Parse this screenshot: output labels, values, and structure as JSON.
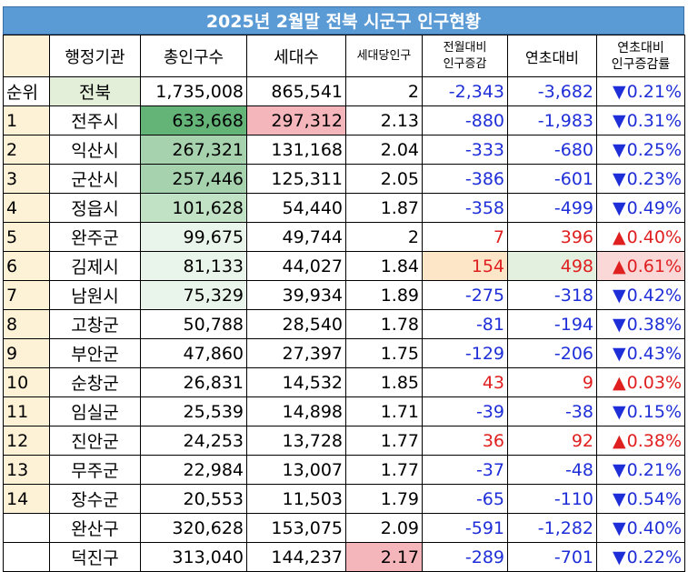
{
  "title": "2025년 2월말 전북 시군구 인구현황",
  "headers": {
    "rank": "",
    "agency": "행정기관",
    "population": "총인구수",
    "households": "세대수",
    "per_household": "세대당인구",
    "mom_change": "전월대비\n인구증감",
    "ytd_change": "연초대비",
    "ytd_rate": "연초대비\n인구증감률"
  },
  "rows": [
    {
      "rank": "순위",
      "name": "전북",
      "population": "1,735,008",
      "households": "865,541",
      "per_household": "2",
      "mom": "-2,343",
      "ytd": "-3,682",
      "dir": "▼",
      "rate": "0.21%"
    },
    {
      "rank": "1",
      "name": "전주시",
      "population": "633,668",
      "households": "297,312",
      "per_household": "2.13",
      "mom": "-880",
      "ytd": "-1,983",
      "dir": "▼",
      "rate": "0.31%"
    },
    {
      "rank": "2",
      "name": "익산시",
      "population": "267,321",
      "households": "131,168",
      "per_household": "2.04",
      "mom": "-333",
      "ytd": "-680",
      "dir": "▼",
      "rate": "0.25%"
    },
    {
      "rank": "3",
      "name": "군산시",
      "population": "257,446",
      "households": "125,311",
      "per_household": "2.05",
      "mom": "-386",
      "ytd": "-601",
      "dir": "▼",
      "rate": "0.23%"
    },
    {
      "rank": "4",
      "name": "정읍시",
      "population": "101,628",
      "households": "54,440",
      "per_household": "1.87",
      "mom": "-358",
      "ytd": "-499",
      "dir": "▼",
      "rate": "0.49%"
    },
    {
      "rank": "5",
      "name": "완주군",
      "population": "99,675",
      "households": "49,744",
      "per_household": "2",
      "mom": "7",
      "ytd": "396",
      "dir": "▲",
      "rate": "0.40%"
    },
    {
      "rank": "6",
      "name": "김제시",
      "population": "81,133",
      "households": "44,027",
      "per_household": "1.84",
      "mom": "154",
      "ytd": "498",
      "dir": "▲",
      "rate": "0.61%"
    },
    {
      "rank": "7",
      "name": "남원시",
      "population": "75,329",
      "households": "39,934",
      "per_household": "1.89",
      "mom": "-275",
      "ytd": "-318",
      "dir": "▼",
      "rate": "0.42%"
    },
    {
      "rank": "8",
      "name": "고창군",
      "population": "50,788",
      "households": "28,540",
      "per_household": "1.78",
      "mom": "-81",
      "ytd": "-194",
      "dir": "▼",
      "rate": "0.38%"
    },
    {
      "rank": "9",
      "name": "부안군",
      "population": "47,860",
      "households": "27,397",
      "per_household": "1.75",
      "mom": "-129",
      "ytd": "-206",
      "dir": "▼",
      "rate": "0.43%"
    },
    {
      "rank": "10",
      "name": "순창군",
      "population": "26,831",
      "households": "14,532",
      "per_household": "1.85",
      "mom": "43",
      "ytd": "9",
      "dir": "▲",
      "rate": "0.03%"
    },
    {
      "rank": "11",
      "name": "임실군",
      "population": "25,539",
      "households": "14,898",
      "per_household": "1.71",
      "mom": "-39",
      "ytd": "-38",
      "dir": "▼",
      "rate": "0.15%"
    },
    {
      "rank": "12",
      "name": "진안군",
      "population": "24,253",
      "households": "13,728",
      "per_household": "1.77",
      "mom": "36",
      "ytd": "92",
      "dir": "▲",
      "rate": "0.38%"
    },
    {
      "rank": "13",
      "name": "무주군",
      "population": "22,984",
      "households": "13,007",
      "per_household": "1.77",
      "mom": "-37",
      "ytd": "-48",
      "dir": "▼",
      "rate": "0.21%"
    },
    {
      "rank": "14",
      "name": "장수군",
      "population": "20,553",
      "households": "11,503",
      "per_household": "1.79",
      "mom": "-65",
      "ytd": "-110",
      "dir": "▼",
      "rate": "0.54%"
    },
    {
      "rank": "",
      "name": "완산구",
      "population": "320,628",
      "households": "153,075",
      "per_household": "2.09",
      "mom": "-591",
      "ytd": "-1,282",
      "dir": "▼",
      "rate": "0.40%"
    },
    {
      "rank": "",
      "name": "덕진구",
      "population": "313,040",
      "households": "144,237",
      "per_household": "2.17",
      "mom": "-289",
      "ytd": "-701",
      "dir": "▼",
      "rate": "0.22%"
    }
  ],
  "colors": {
    "title_bg": "#5b9bd5",
    "negative": "#1f2fd8",
    "positive": "#e02020",
    "rank_bg": "#fdf1d6"
  }
}
